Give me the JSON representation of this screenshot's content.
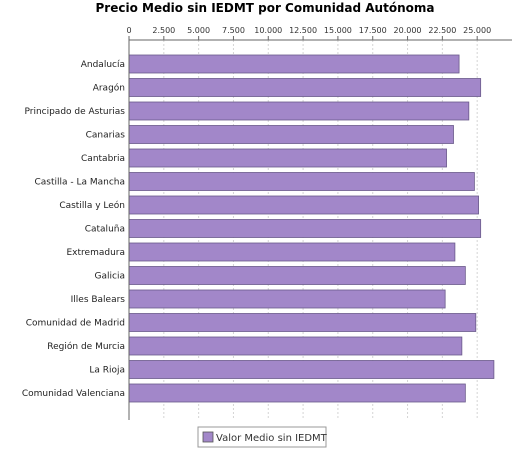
{
  "chart_data": {
    "type": "bar",
    "orientation": "horizontal",
    "title": "Precio Medio sin IEDMT por Comunidad Autónoma",
    "categories": [
      "Andalucía",
      "Aragón",
      "Principado de Asturias",
      "Canarias",
      "Cantabria",
      "Castilla - La Mancha",
      "Castilla y León",
      "Cataluña",
      "Extremadura",
      "Galicia",
      "Illes Balears",
      "Comunidad de Madrid",
      "Región de Murcia",
      "La Rioja",
      "Comunidad Valenciana"
    ],
    "series": [
      {
        "name": "Valor Medio sin IEDMT",
        "color": "#a287c9",
        "values": [
          23700,
          25250,
          24400,
          23300,
          22800,
          24800,
          25100,
          25250,
          23400,
          24150,
          22700,
          24900,
          23900,
          26200,
          24150
        ]
      }
    ],
    "ticks": [
      {
        "value": 0,
        "label": "0"
      },
      {
        "value": 2500,
        "label": "2.500"
      },
      {
        "value": 5000,
        "label": "5.000"
      },
      {
        "value": 7500,
        "label": "7.500"
      },
      {
        "value": 10000,
        "label": "10.000"
      },
      {
        "value": 12500,
        "label": "12.500"
      },
      {
        "value": 15000,
        "label": "15.000"
      },
      {
        "value": 17500,
        "label": "17.500"
      },
      {
        "value": 20000,
        "label": "20.000"
      },
      {
        "value": 22500,
        "label": "22.500"
      },
      {
        "value": 25000,
        "label": "25.000"
      }
    ],
    "xlim": [
      0,
      27500
    ],
    "grid": true,
    "legend_position": "bottom"
  }
}
